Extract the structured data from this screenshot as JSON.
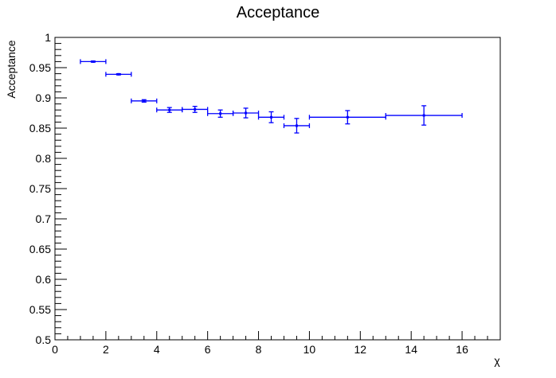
{
  "chart_data": {
    "type": "scatter",
    "title": "Acceptance",
    "xlabel": "χ",
    "ylabel": "Acceptance",
    "xlim": [
      0,
      17.5
    ],
    "ylim": [
      0.5,
      1.0
    ],
    "x_ticks": [
      0,
      2,
      4,
      6,
      8,
      10,
      12,
      14,
      16
    ],
    "x_tick_labels": [
      "0",
      "2",
      "4",
      "6",
      "8",
      "10",
      "12",
      "14",
      "16"
    ],
    "y_ticks": [
      0.5,
      0.55,
      0.6,
      0.65,
      0.7,
      0.75,
      0.8,
      0.85,
      0.9,
      0.95,
      1.0
    ],
    "y_tick_labels": [
      "0.5",
      "0.55",
      "0.6",
      "0.65",
      "0.7",
      "0.75",
      "0.8",
      "0.85",
      "0.9",
      "0.95",
      "1"
    ],
    "grid": false,
    "series": [
      {
        "color": "#0000ff",
        "points": [
          {
            "x": 1.5,
            "x_low": 1,
            "x_high": 2,
            "y": 0.96,
            "y_err": 0.001
          },
          {
            "x": 2.5,
            "x_low": 2,
            "x_high": 3,
            "y": 0.939,
            "y_err": 0.001
          },
          {
            "x": 3.5,
            "x_low": 3,
            "x_high": 4,
            "y": 0.895,
            "y_err": 0.002
          },
          {
            "x": 4.5,
            "x_low": 4,
            "x_high": 5,
            "y": 0.88,
            "y_err": 0.004
          },
          {
            "x": 5.5,
            "x_low": 5,
            "x_high": 6,
            "y": 0.881,
            "y_err": 0.005
          },
          {
            "x": 6.5,
            "x_low": 6,
            "x_high": 7,
            "y": 0.874,
            "y_err": 0.006
          },
          {
            "x": 7.5,
            "x_low": 7,
            "x_high": 8,
            "y": 0.875,
            "y_err": 0.008
          },
          {
            "x": 8.5,
            "x_low": 8,
            "x_high": 9,
            "y": 0.868,
            "y_err": 0.009
          },
          {
            "x": 9.5,
            "x_low": 9,
            "x_high": 10,
            "y": 0.854,
            "y_err": 0.012
          },
          {
            "x": 11.5,
            "x_low": 10,
            "x_high": 13,
            "y": 0.868,
            "y_err": 0.011
          },
          {
            "x": 14.5,
            "x_low": 13,
            "x_high": 16,
            "y": 0.871,
            "y_err": 0.016
          }
        ]
      }
    ]
  }
}
